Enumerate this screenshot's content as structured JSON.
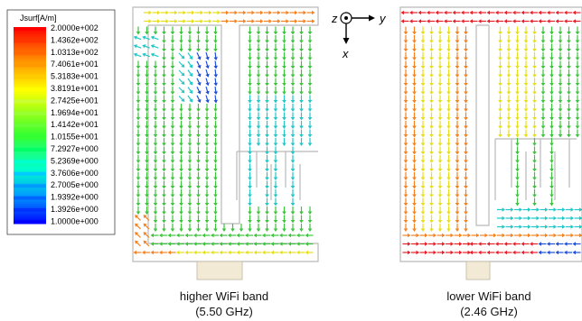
{
  "legend": {
    "title": "Jsurf[A/m]",
    "entries": [
      {
        "label": "2.0000e+002",
        "color": "#ff0000"
      },
      {
        "label": "1.4362e+002",
        "color": "#ff3300"
      },
      {
        "label": "1.0313e+002",
        "color": "#ff6600"
      },
      {
        "label": "7.4061e+001",
        "color": "#ff9900"
      },
      {
        "label": "5.3183e+001",
        "color": "#ffcc00"
      },
      {
        "label": "3.8191e+001",
        "color": "#ffff00"
      },
      {
        "label": "2.7425e+001",
        "color": "#ccff33"
      },
      {
        "label": "1.9694e+001",
        "color": "#99ff33"
      },
      {
        "label": "1.4142e+001",
        "color": "#66ff33"
      },
      {
        "label": "1.0155e+001",
        "color": "#33ff33"
      },
      {
        "label": "7.2927e+000",
        "color": "#00ff66"
      },
      {
        "label": "5.2369e+000",
        "color": "#00ffcc"
      },
      {
        "label": "3.7606e+000",
        "color": "#00ccff"
      },
      {
        "label": "2.7005e+000",
        "color": "#0099ff"
      },
      {
        "label": "1.9392e+000",
        "color": "#0066ff"
      },
      {
        "label": "1.3926e+000",
        "color": "#0033ff"
      },
      {
        "label": "1.0000e+000",
        "color": "#0000ff"
      }
    ]
  },
  "axes": {
    "z": "z",
    "y": "y",
    "x": "x"
  },
  "panels": [
    {
      "caption_line1": "higher WiFi band",
      "caption_line2": "(5.50 GHz)"
    },
    {
      "caption_line1": "lower WiFi band",
      "caption_line2": "(2.46 GHz)"
    }
  ],
  "colors": {
    "red": "#e8202a",
    "orange": "#f58220",
    "yellow": "#e6e01c",
    "green": "#3cc43c",
    "cyan": "#22c7c7",
    "blue": "#1f4fd9",
    "outline": "#b9b9b9",
    "feed": "#f3ead6"
  }
}
